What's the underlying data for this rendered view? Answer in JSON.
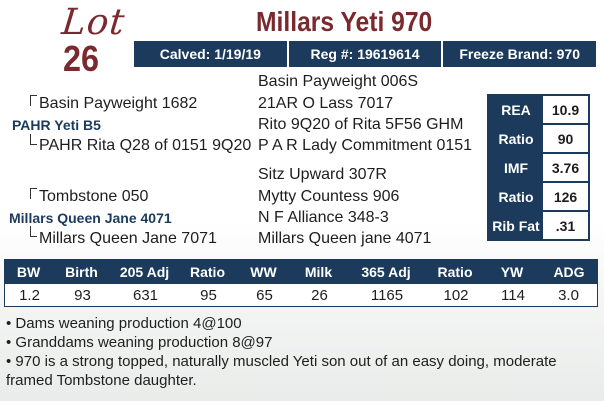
{
  "lot": {
    "word": "Lot",
    "number": "26"
  },
  "title": "Millars Yeti 970",
  "infobar": {
    "calved": "Calved: 1/19/19",
    "reg": "Reg #: 19619614",
    "freeze_brand": "Freeze Brand: 970"
  },
  "pedigree": {
    "sire_sire_sire": "Basin Payweight 006S",
    "sire_sire": "Basin Payweight 1682",
    "sire_sire_dam": "21AR O Lass 7017",
    "sire": "PAHR Yeti B5",
    "sire_dam_sire": "Rito 9Q20 of Rita 5F56 GHM",
    "sire_dam": "PAHR Rita Q28 of 0151 9Q20",
    "sire_dam_dam": "P A R Lady Commitment 0151",
    "dam_sire_sire": "Sitz Upward 307R",
    "dam_sire": "Tombstone 050",
    "dam_sire_dam": "Mytty Countess 906",
    "dam": "Millars Queen Jane 4071",
    "dam_dam_sire": "N F Alliance 348-3",
    "dam_dam": "Millars Queen Jane 7071",
    "dam_dam_dam": "Millars Queen jane 4071"
  },
  "epd": [
    {
      "label": "REA",
      "value": "10.9"
    },
    {
      "label": "Ratio",
      "value": "90"
    },
    {
      "label": "IMF",
      "value": "3.76"
    },
    {
      "label": "Ratio",
      "value": "126"
    },
    {
      "label": "Rib Fat",
      "value": ".31"
    }
  ],
  "performance": {
    "headers": [
      "BW",
      "Birth",
      "205 Adj",
      "Ratio",
      "WW",
      "Milk",
      "365 Adj",
      "Ratio",
      "YW",
      "ADG"
    ],
    "values": [
      "1.2",
      "93",
      "631",
      "95",
      "65",
      "26",
      "1165",
      "102",
      "114",
      "3.0"
    ]
  },
  "notes": [
    "• Dams weaning production 4@100",
    "• Granddams weaning production 8@97",
    "• 970 is a strong topped, naturally muscled Yeti son out of an easy doing, moderate framed Tombstone daughter."
  ],
  "colors": {
    "maroon": "#7a2a2e",
    "navy": "#1b3a5c"
  }
}
